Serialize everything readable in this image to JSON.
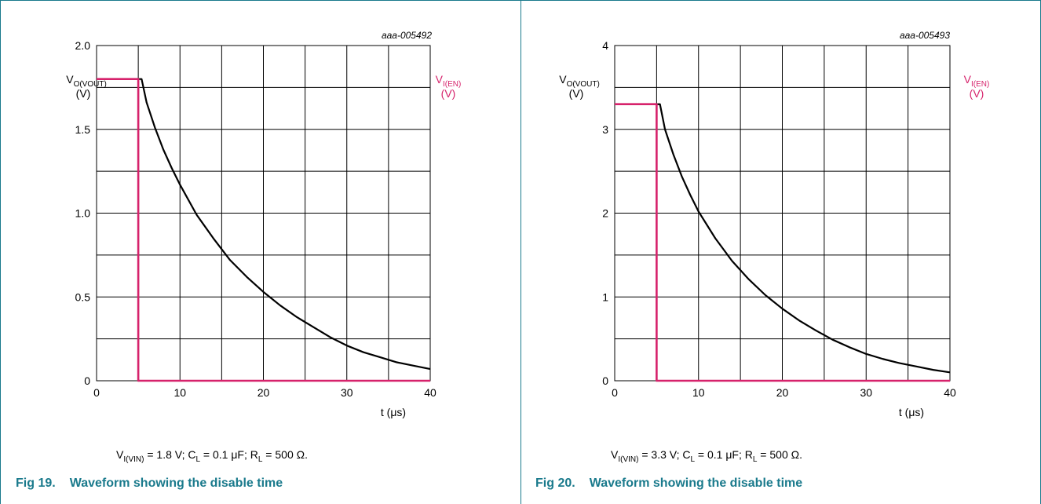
{
  "colors": {
    "frame": "#1a7a8c",
    "black": "#000000",
    "en": "#d6226b",
    "grid": "#000000"
  },
  "panels": [
    {
      "code": "aaa-005492",
      "ylabel_main": "V",
      "ylabel_sub": "O(VOUT)",
      "ylabel_unit": "(V)",
      "ylabel2_main": "V",
      "ylabel2_sub": "I(EN)",
      "ylabel2_unit": "(V)",
      "xlabel": "t (μs)",
      "condition": {
        "vin_sub": "I(VIN)",
        "vin_value": " = 1.8 V; C",
        "cl_sub": "L",
        "cl_value": " = 0.1 μF; R",
        "rl_sub": "L",
        "rl_value": " = 500 Ω."
      },
      "fig_num": "Fig 19.",
      "fig_title": "Waveform showing the disable time"
    },
    {
      "code": "aaa-005493",
      "ylabel_main": "V",
      "ylabel_sub": "O(VOUT)",
      "ylabel_unit": "(V)",
      "ylabel2_main": "V",
      "ylabel2_sub": "I(EN)",
      "ylabel2_unit": "(V)",
      "xlabel": "t (μs)",
      "condition": {
        "vin_sub": "I(VIN)",
        "vin_value": " = 3.3 V; C",
        "cl_sub": "L",
        "cl_value": " = 0.1 μF; R",
        "rl_sub": "L",
        "rl_value": " = 500 Ω."
      },
      "fig_num": "Fig 20.",
      "fig_title": "Waveform showing the disable time"
    }
  ],
  "chart_data": [
    {
      "type": "line",
      "xlim": [
        0,
        40
      ],
      "ylim": [
        0,
        2.0
      ],
      "xticks": [
        0,
        10,
        20,
        30,
        40
      ],
      "xtick_labels": [
        "0",
        "10",
        "20",
        "30",
        "40"
      ],
      "yticks": [
        0,
        0.5,
        1.0,
        1.5,
        2.0
      ],
      "ytick_labels": [
        "0",
        "0.5",
        "1.0",
        "1.5",
        "2.0"
      ],
      "grid": true,
      "grid_x_step": 5,
      "grid_y_step": 0.25,
      "series": [
        {
          "x": [
            0,
            5.4,
            6,
            7,
            8,
            9,
            10,
            12,
            14,
            16,
            18,
            20,
            22,
            24,
            26,
            28,
            30,
            32,
            34,
            36,
            38,
            40
          ],
          "y": [
            1.8,
            1.8,
            1.66,
            1.51,
            1.38,
            1.27,
            1.17,
            0.99,
            0.85,
            0.72,
            0.62,
            0.53,
            0.45,
            0.38,
            0.32,
            0.26,
            0.21,
            0.17,
            0.14,
            0.11,
            0.09,
            0.07
          ],
          "color": "#000000"
        },
        {
          "x": [
            0,
            5,
            5,
            40
          ],
          "y": [
            1.8,
            1.8,
            0,
            0
          ],
          "color": "#d6226b"
        }
      ]
    },
    {
      "type": "line",
      "xlim": [
        0,
        40
      ],
      "ylim": [
        0,
        4
      ],
      "xticks": [
        0,
        10,
        20,
        30,
        40
      ],
      "xtick_labels": [
        "0",
        "10",
        "20",
        "30",
        "40"
      ],
      "yticks": [
        0,
        1,
        2,
        3,
        4
      ],
      "ytick_labels": [
        "0",
        "1",
        "2",
        "3",
        "4"
      ],
      "grid": true,
      "grid_x_step": 5,
      "grid_y_step": 0.5,
      "series": [
        {
          "x": [
            0,
            5.4,
            6,
            7,
            8,
            9,
            10,
            12,
            14,
            16,
            18,
            20,
            22,
            24,
            26,
            28,
            30,
            32,
            34,
            36,
            38,
            40
          ],
          "y": [
            3.3,
            3.3,
            3.0,
            2.7,
            2.44,
            2.22,
            2.02,
            1.7,
            1.43,
            1.21,
            1.02,
            0.86,
            0.72,
            0.6,
            0.49,
            0.4,
            0.32,
            0.26,
            0.21,
            0.17,
            0.13,
            0.1
          ],
          "color": "#000000"
        },
        {
          "x": [
            0,
            5,
            5,
            40
          ],
          "y": [
            3.3,
            3.3,
            0,
            0
          ],
          "color": "#d6226b"
        }
      ]
    }
  ]
}
